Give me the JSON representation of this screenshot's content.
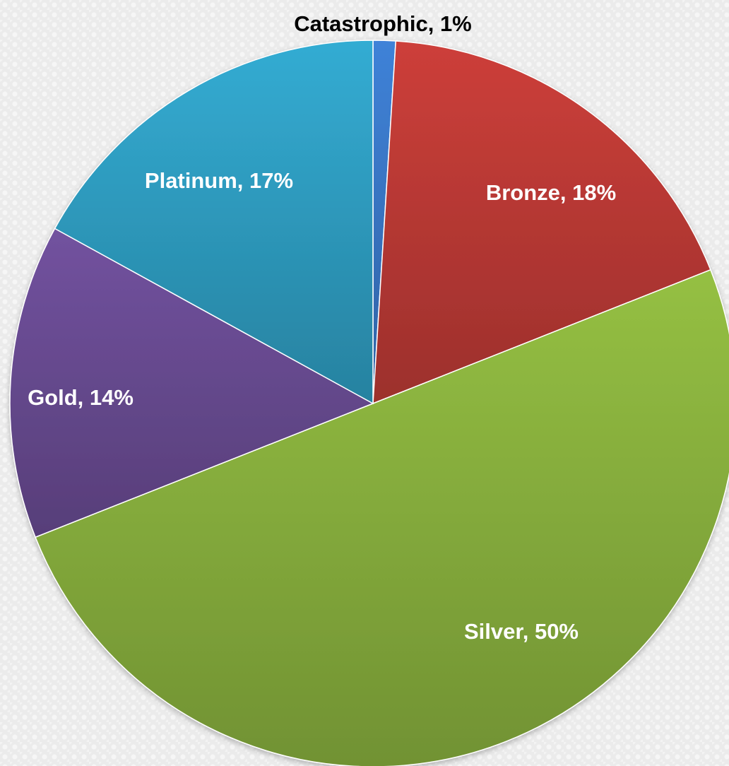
{
  "chart_data": {
    "type": "pie",
    "categories": [
      "Catastrophic",
      "Bronze",
      "Silver",
      "Gold",
      "Platinum"
    ],
    "values": [
      1,
      18,
      50,
      14,
      17
    ],
    "colors": [
      "#3a78c8",
      "#be3a36",
      "#8ab23e",
      "#6a4c93",
      "#2f9fc3"
    ],
    "labels": [
      "Catastrophic, 1%",
      "Bronze, 18%",
      "Silver, 50%",
      "Gold, 14%",
      "Platinum, 17%"
    ],
    "label_colors": [
      "#000000",
      "#ffffff",
      "#ffffff",
      "#ffffff",
      "#ffffff"
    ],
    "start_angle_deg": 0,
    "direction": "clockwise",
    "legend": "none"
  }
}
